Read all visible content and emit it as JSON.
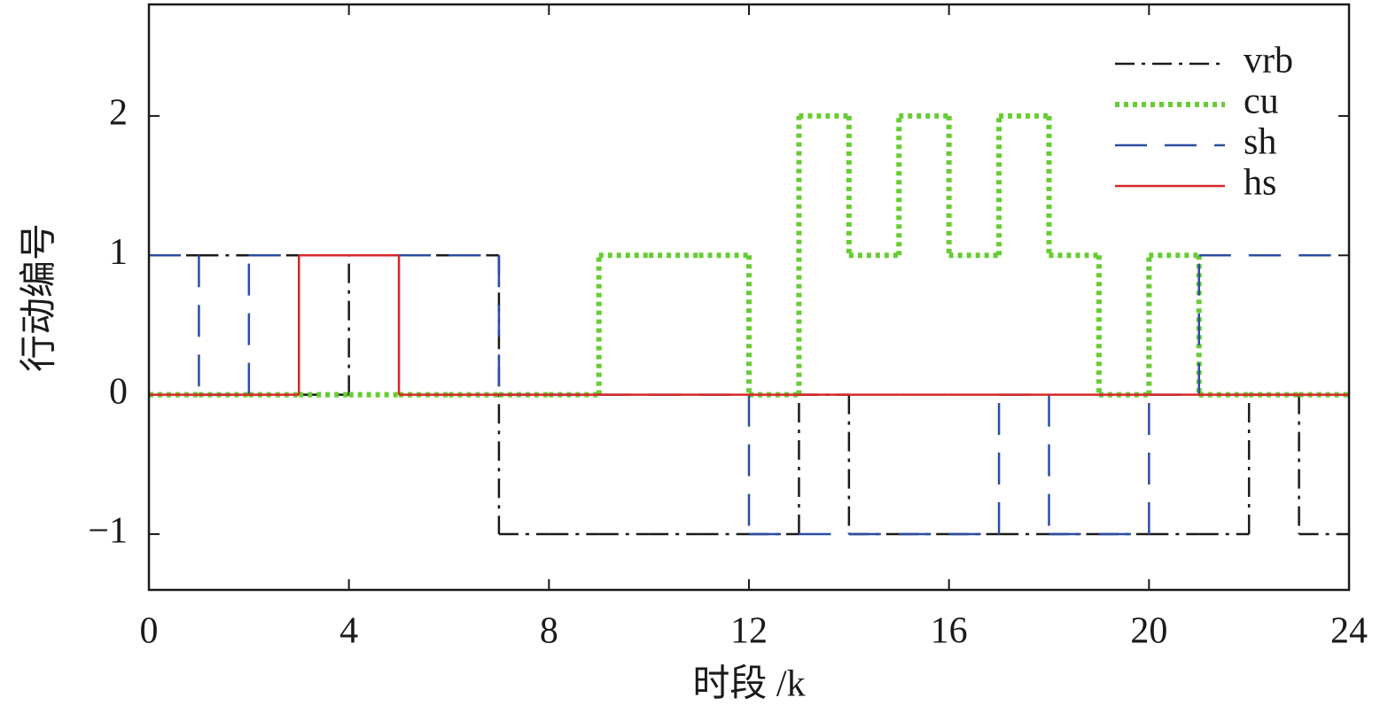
{
  "chart_data": {
    "type": "step",
    "xlabel": "时段 /k",
    "ylabel": "行动编号",
    "x": [
      0,
      1,
      2,
      3,
      4,
      5,
      6,
      7,
      8,
      9,
      10,
      11,
      12,
      13,
      14,
      15,
      16,
      17,
      18,
      19,
      20,
      21,
      22,
      23
    ],
    "xlim": [
      0,
      24
    ],
    "xticks": [
      0,
      4,
      8,
      12,
      16,
      20,
      24
    ],
    "ylim": [
      -1.4,
      2.8
    ],
    "yticks": [
      {
        "value": -1,
        "label": "−1"
      },
      0,
      1,
      2
    ],
    "legend": "upper right",
    "series": [
      {
        "name": "vrb",
        "color": "#1a1a1a",
        "linestyle": "dashdot",
        "values": [
          1,
          1,
          1,
          0,
          1,
          1,
          1,
          -1,
          -1,
          -1,
          -1,
          -1,
          -1,
          0,
          -1,
          -1,
          -1,
          -1,
          -1,
          -1,
          -1,
          -1,
          0,
          -1
        ]
      },
      {
        "name": "cu",
        "color": "#66cc33",
        "linestyle": "dotted",
        "values": [
          0,
          0,
          0,
          0,
          0,
          0,
          0,
          0,
          0,
          1,
          1,
          1,
          0,
          2,
          1,
          2,
          1,
          2,
          1,
          0,
          1,
          0,
          0,
          0
        ]
      },
      {
        "name": "sh",
        "color": "#2b4ea2",
        "linestyle": "dashed",
        "values": [
          1,
          0,
          1,
          1,
          1,
          1,
          1,
          0,
          0,
          0,
          0,
          0,
          -1,
          -1,
          -1,
          -1,
          -1,
          0,
          -1,
          -1,
          0,
          1,
          1,
          1
        ]
      },
      {
        "name": "hs",
        "color": "#d62728",
        "linestyle": "solid",
        "values": [
          0,
          0,
          0,
          1,
          1,
          0,
          0,
          0,
          0,
          0,
          0,
          0,
          0,
          0,
          0,
          0,
          0,
          0,
          0,
          0,
          0,
          0,
          0,
          0
        ]
      }
    ]
  }
}
